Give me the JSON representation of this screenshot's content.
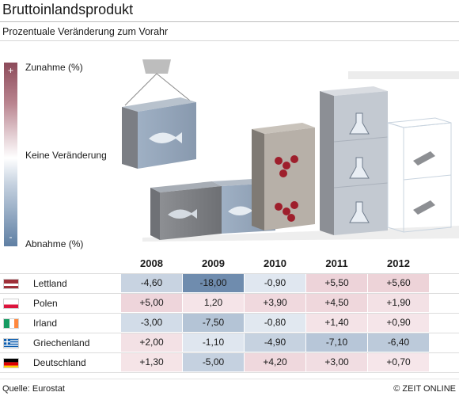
{
  "header": {
    "title": "Bruttoinlandsprodukt",
    "subtitle": "Prozentuale Veränderung zum Vorahr"
  },
  "scale": {
    "plus": "+",
    "minus": "-",
    "top_label": "Zunahme (%)",
    "mid_label": "Keine Veränderung",
    "bottom_label": "Abnahme (%)"
  },
  "colors": {
    "increase": "#8c4b5a",
    "neutral": "#ffffff",
    "decrease": "#5f7fa3"
  },
  "chart_data": {
    "type": "table",
    "columns": [
      "2008",
      "2009",
      "2010",
      "2011",
      "2012"
    ],
    "rows": [
      {
        "country": "Lettland",
        "flag": "latvia-flag",
        "values": [
          "-4,60",
          "-18,00",
          "-0,90",
          "+5,50",
          "+5,60"
        ],
        "numeric": [
          -4.6,
          -18.0,
          -0.9,
          5.5,
          5.6
        ]
      },
      {
        "country": "Polen",
        "flag": "poland-flag",
        "values": [
          "+5,00",
          "1,20",
          "+3,90",
          "+4,50",
          "+1,90"
        ],
        "numeric": [
          5.0,
          1.2,
          3.9,
          4.5,
          1.9
        ]
      },
      {
        "country": "Irland",
        "flag": "ireland-flag",
        "values": [
          "-3,00",
          "-7,50",
          "-0,80",
          "+1,40",
          "+0,90"
        ],
        "numeric": [
          -3.0,
          -7.5,
          -0.8,
          1.4,
          0.9
        ]
      },
      {
        "country": "Griechenland",
        "flag": "greece-flag",
        "values": [
          "+2,00",
          "-1,10",
          "-4,90",
          "-7,10",
          "-6,40"
        ],
        "numeric": [
          2.0,
          -1.1,
          -4.9,
          -7.1,
          -6.4
        ]
      },
      {
        "country": "Deutschland",
        "flag": "germany-flag",
        "values": [
          "+1,30",
          "-5,00",
          "+4,20",
          "+3,00",
          "+0,70"
        ],
        "numeric": [
          1.3,
          -5.0,
          4.2,
          3.0,
          0.7
        ]
      }
    ]
  },
  "footer": {
    "source": "Quelle: Eurostat",
    "brand": "© ZEIT ONLINE"
  }
}
